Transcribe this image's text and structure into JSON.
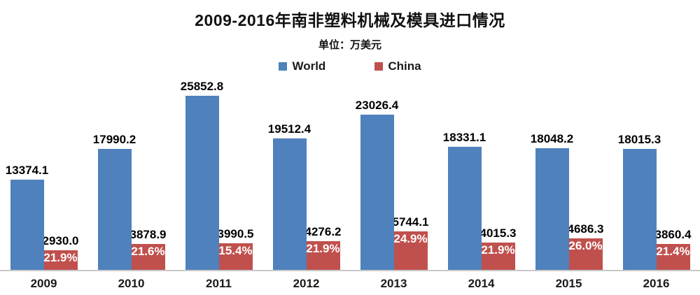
{
  "chart_data": {
    "type": "bar",
    "title": "2009-2016年南非塑料机械及模具进口情况",
    "subtitle": "单位：万美元",
    "categories": [
      "2009",
      "2010",
      "2011",
      "2012",
      "2013",
      "2014",
      "2015",
      "2016"
    ],
    "series": [
      {
        "name": "World",
        "color": "#4F81BD",
        "values": [
          13374.1,
          17990.2,
          25852.8,
          19512.4,
          23026.4,
          18331.1,
          18048.2,
          18015.3
        ]
      },
      {
        "name": "China",
        "color": "#C0504D",
        "values": [
          2930.0,
          3878.9,
          3990.5,
          4276.2,
          5744.1,
          4015.3,
          4686.3,
          3860.4
        ],
        "percent_labels": [
          "21.9%",
          "21.6%",
          "15.4%",
          "21.9%",
          "24.9%",
          "21.9%",
          "26.0%",
          "21.4%"
        ]
      }
    ],
    "ylim": [
      0,
      27000
    ],
    "grid": false,
    "legend_position": "top-center",
    "value_label_decimals": 1
  }
}
